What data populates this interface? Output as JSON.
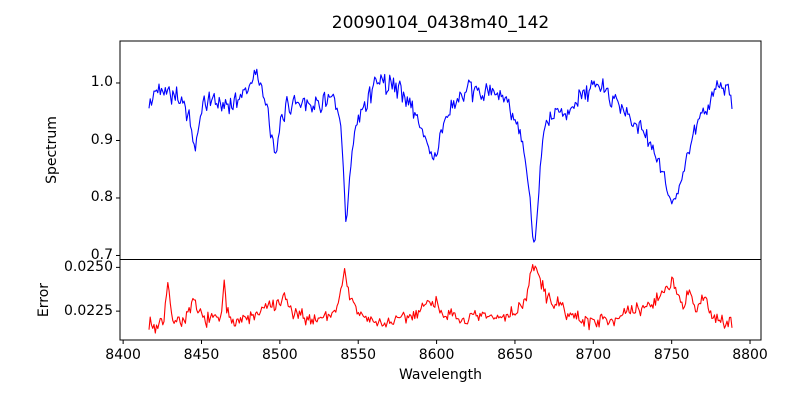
{
  "figure": {
    "background": "#ffffff",
    "frame_color": "#000000"
  },
  "chart_data": [
    {
      "id": "spectrum",
      "type": "line",
      "title": "20090104_0438m40_142",
      "ylabel": "Spectrum",
      "line_color": "#0000ff",
      "grid": false,
      "legend": "none",
      "xlim": [
        8398,
        8807
      ],
      "ylim": [
        0.693,
        1.073
      ],
      "yticks": [
        "1.0",
        "0.9",
        "0.8",
        "0.7"
      ],
      "ytick_values": [
        1.0,
        0.9,
        0.8,
        0.7
      ],
      "x_start": 8416.5,
      "x_end": 8788.5,
      "sampling_step": 0.8,
      "noise_amp": 0.012,
      "noise_seed": 42,
      "anchors": [
        [
          8416.5,
          0.955
        ],
        [
          8419,
          0.975
        ],
        [
          8422,
          0.99
        ],
        [
          8426,
          0.995
        ],
        [
          8430,
          0.985
        ],
        [
          8434,
          0.98
        ],
        [
          8438,
          0.965
        ],
        [
          8442,
          0.945
        ],
        [
          8444.5,
          0.9
        ],
        [
          8446,
          0.878
        ],
        [
          8448,
          0.92
        ],
        [
          8450,
          0.952
        ],
        [
          8454,
          0.968
        ],
        [
          8458,
          0.973
        ],
        [
          8462,
          0.962
        ],
        [
          8466,
          0.96
        ],
        [
          8470,
          0.967
        ],
        [
          8474,
          0.975
        ],
        [
          8478,
          0.988
        ],
        [
          8481,
          1.0
        ],
        [
          8483.5,
          1.03
        ],
        [
          8486,
          1.0
        ],
        [
          8489,
          0.985
        ],
        [
          8492,
          0.95
        ],
        [
          8495,
          0.905
        ],
        [
          8497,
          0.862
        ],
        [
          8499,
          0.9
        ],
        [
          8501,
          0.94
        ],
        [
          8504,
          0.958
        ],
        [
          8508,
          0.965
        ],
        [
          8512,
          0.968
        ],
        [
          8516,
          0.972
        ],
        [
          8520,
          0.962
        ],
        [
          8524,
          0.96
        ],
        [
          8528,
          0.972
        ],
        [
          8532,
          0.972
        ],
        [
          8535,
          0.965
        ],
        [
          8537.5,
          0.94
        ],
        [
          8539.5,
          0.9
        ],
        [
          8541,
          0.82
        ],
        [
          8542.2,
          0.752
        ],
        [
          8543.5,
          0.79
        ],
        [
          8545,
          0.85
        ],
        [
          8547,
          0.9
        ],
        [
          8550,
          0.935
        ],
        [
          8553,
          0.955
        ],
        [
          8556,
          0.975
        ],
        [
          8559,
          0.99
        ],
        [
          8562,
          1.005
        ],
        [
          8564,
          1.01
        ],
        [
          8567,
          1.0
        ],
        [
          8570,
          1.0
        ],
        [
          8573,
          0.995
        ],
        [
          8576,
          0.99
        ],
        [
          8580,
          0.975
        ],
        [
          8584,
          0.96
        ],
        [
          8588,
          0.937
        ],
        [
          8592,
          0.91
        ],
        [
          8595,
          0.885
        ],
        [
          8597.5,
          0.872
        ],
        [
          8600,
          0.878
        ],
        [
          8602,
          0.9
        ],
        [
          8605,
          0.935
        ],
        [
          8608,
          0.952
        ],
        [
          8612,
          0.965
        ],
        [
          8616,
          0.975
        ],
        [
          8620,
          0.983
        ],
        [
          8624,
          0.985
        ],
        [
          8628,
          0.982
        ],
        [
          8632,
          0.985
        ],
        [
          8636,
          0.982
        ],
        [
          8640,
          0.978
        ],
        [
          8644,
          0.97
        ],
        [
          8648,
          0.952
        ],
        [
          8651,
          0.935
        ],
        [
          8654,
          0.905
        ],
        [
          8657,
          0.86
        ],
        [
          8659.5,
          0.8
        ],
        [
          8661.5,
          0.725
        ],
        [
          8662.5,
          0.715
        ],
        [
          8664,
          0.76
        ],
        [
          8666,
          0.845
        ],
        [
          8668,
          0.905
        ],
        [
          8670,
          0.93
        ],
        [
          8673,
          0.94
        ],
        [
          8676,
          0.945
        ],
        [
          8680,
          0.95
        ],
        [
          8684,
          0.955
        ],
        [
          8688,
          0.963
        ],
        [
          8692,
          0.975
        ],
        [
          8696,
          0.985
        ],
        [
          8700,
          0.993
        ],
        [
          8703,
          0.995
        ],
        [
          8706,
          0.99
        ],
        [
          8710,
          0.98
        ],
        [
          8714,
          0.972
        ],
        [
          8718,
          0.958
        ],
        [
          8722,
          0.945
        ],
        [
          8726,
          0.933
        ],
        [
          8730,
          0.92
        ],
        [
          8734,
          0.905
        ],
        [
          8738,
          0.885
        ],
        [
          8742,
          0.862
        ],
        [
          8745,
          0.838
        ],
        [
          8748,
          0.805
        ],
        [
          8750,
          0.79
        ],
        [
          8752,
          0.798
        ],
        [
          8755,
          0.82
        ],
        [
          8758,
          0.85
        ],
        [
          8761,
          0.88
        ],
        [
          8764,
          0.908
        ],
        [
          8767,
          0.932
        ],
        [
          8770,
          0.952
        ],
        [
          8773,
          0.963
        ],
        [
          8776,
          0.98
        ],
        [
          8779,
          0.99
        ],
        [
          8782,
          0.995
        ],
        [
          8785,
          0.985
        ],
        [
          8788.5,
          0.97
        ]
      ]
    },
    {
      "id": "error",
      "type": "line",
      "ylabel": "Error",
      "xlabel": "Wavelength",
      "line_color": "#ff0000",
      "grid": false,
      "legend": "none",
      "xlim": [
        8398,
        8807
      ],
      "ylim": [
        0.02085,
        0.02545
      ],
      "yticks": [
        "0.0250",
        "0.0225"
      ],
      "ytick_values": [
        0.025,
        0.0225
      ],
      "xticks": [
        "8400",
        "8450",
        "8500",
        "8550",
        "8600",
        "8650",
        "8700",
        "8750",
        "8800"
      ],
      "xtick_values": [
        8400,
        8450,
        8500,
        8550,
        8600,
        8650,
        8700,
        8750,
        8800
      ],
      "x_start": 8416.5,
      "x_end": 8788.5,
      "sampling_step": 0.8,
      "noise_amp": 0.00025,
      "noise_seed": 7,
      "anchors": [
        [
          8416.5,
          0.0219
        ],
        [
          8419,
          0.02165
        ],
        [
          8421,
          0.0215
        ],
        [
          8423,
          0.0219
        ],
        [
          8426,
          0.0221
        ],
        [
          8428.5,
          0.02405
        ],
        [
          8430,
          0.0227
        ],
        [
          8432,
          0.0221
        ],
        [
          8435,
          0.02195
        ],
        [
          8438,
          0.022
        ],
        [
          8441,
          0.0222
        ],
        [
          8444,
          0.0228
        ],
        [
          8446,
          0.0229
        ],
        [
          8448,
          0.0224
        ],
        [
          8451,
          0.0221
        ],
        [
          8454,
          0.02205
        ],
        [
          8457,
          0.022
        ],
        [
          8460,
          0.0221
        ],
        [
          8463,
          0.0222
        ],
        [
          8464.5,
          0.0241
        ],
        [
          8466,
          0.0225
        ],
        [
          8469,
          0.0221
        ],
        [
          8472,
          0.02205
        ],
        [
          8476,
          0.022
        ],
        [
          8480,
          0.0221
        ],
        [
          8484,
          0.0222
        ],
        [
          8488,
          0.0224
        ],
        [
          8491,
          0.0227
        ],
        [
          8494,
          0.0229
        ],
        [
          8497,
          0.0227
        ],
        [
          8500,
          0.0228
        ],
        [
          8503,
          0.0234
        ],
        [
          8505,
          0.0229
        ],
        [
          8508,
          0.0224
        ],
        [
          8511,
          0.0222
        ],
        [
          8514,
          0.0222
        ],
        [
          8517,
          0.0221
        ],
        [
          8520,
          0.022
        ],
        [
          8524,
          0.0221
        ],
        [
          8528,
          0.0222
        ],
        [
          8532,
          0.0223
        ],
        [
          8535,
          0.0226
        ],
        [
          8538,
          0.0231
        ],
        [
          8540.5,
          0.0246
        ],
        [
          8542,
          0.0247
        ],
        [
          8544,
          0.0236
        ],
        [
          8546,
          0.0229
        ],
        [
          8549,
          0.0225
        ],
        [
          8552,
          0.0223
        ],
        [
          8555,
          0.0221
        ],
        [
          8558,
          0.022
        ],
        [
          8561,
          0.0218
        ],
        [
          8564,
          0.0218
        ],
        [
          8568,
          0.02185
        ],
        [
          8572,
          0.0219
        ],
        [
          8576,
          0.022
        ],
        [
          8580,
          0.0221
        ],
        [
          8584,
          0.0222
        ],
        [
          8588,
          0.0225
        ],
        [
          8592,
          0.0228
        ],
        [
          8596,
          0.0231
        ],
        [
          8599,
          0.023
        ],
        [
          8602,
          0.0227
        ],
        [
          8605,
          0.0224
        ],
        [
          8608,
          0.0222
        ],
        [
          8611,
          0.0221
        ],
        [
          8614,
          0.022
        ],
        [
          8618,
          0.022
        ],
        [
          8622,
          0.0221
        ],
        [
          8626,
          0.0221
        ],
        [
          8630,
          0.0222
        ],
        [
          8634,
          0.0221
        ],
        [
          8638,
          0.0221
        ],
        [
          8642,
          0.0222
        ],
        [
          8646,
          0.0223
        ],
        [
          8650,
          0.0225
        ],
        [
          8653,
          0.0227
        ],
        [
          8656,
          0.0231
        ],
        [
          8658,
          0.0236
        ],
        [
          8660,
          0.0244
        ],
        [
          8661.5,
          0.0251
        ],
        [
          8662.5,
          0.0252
        ],
        [
          8664,
          0.0248
        ],
        [
          8666,
          0.0242
        ],
        [
          8668,
          0.0238
        ],
        [
          8670,
          0.0234
        ],
        [
          8672,
          0.0231
        ],
        [
          8675,
          0.023
        ],
        [
          8678,
          0.0228
        ],
        [
          8681,
          0.0226
        ],
        [
          8684,
          0.0224
        ],
        [
          8687,
          0.0222
        ],
        [
          8690,
          0.0221
        ],
        [
          8694,
          0.022
        ],
        [
          8698,
          0.0219
        ],
        [
          8702,
          0.02195
        ],
        [
          8706,
          0.022
        ],
        [
          8710,
          0.0221
        ],
        [
          8714,
          0.0221
        ],
        [
          8718,
          0.0222
        ],
        [
          8722,
          0.0224
        ],
        [
          8726,
          0.0225
        ],
        [
          8730,
          0.0226
        ],
        [
          8734,
          0.0228
        ],
        [
          8738,
          0.023
        ],
        [
          8742,
          0.0233
        ],
        [
          8745,
          0.0236
        ],
        [
          8748,
          0.0241
        ],
        [
          8750,
          0.0242
        ],
        [
          8752,
          0.0239
        ],
        [
          8754,
          0.0234
        ],
        [
          8756,
          0.0228
        ],
        [
          8758,
          0.0225
        ],
        [
          8760,
          0.0234
        ],
        [
          8762,
          0.0236
        ],
        [
          8764,
          0.0229
        ],
        [
          8766,
          0.0225
        ],
        [
          8768,
          0.0227
        ],
        [
          8770,
          0.0233
        ],
        [
          8772,
          0.0231
        ],
        [
          8774,
          0.0226
        ],
        [
          8776,
          0.0223
        ],
        [
          8778,
          0.0222
        ],
        [
          8780,
          0.0221
        ],
        [
          8782,
          0.022
        ],
        [
          8784,
          0.0216
        ],
        [
          8786,
          0.0217
        ],
        [
          8788.5,
          0.0218
        ]
      ]
    }
  ]
}
